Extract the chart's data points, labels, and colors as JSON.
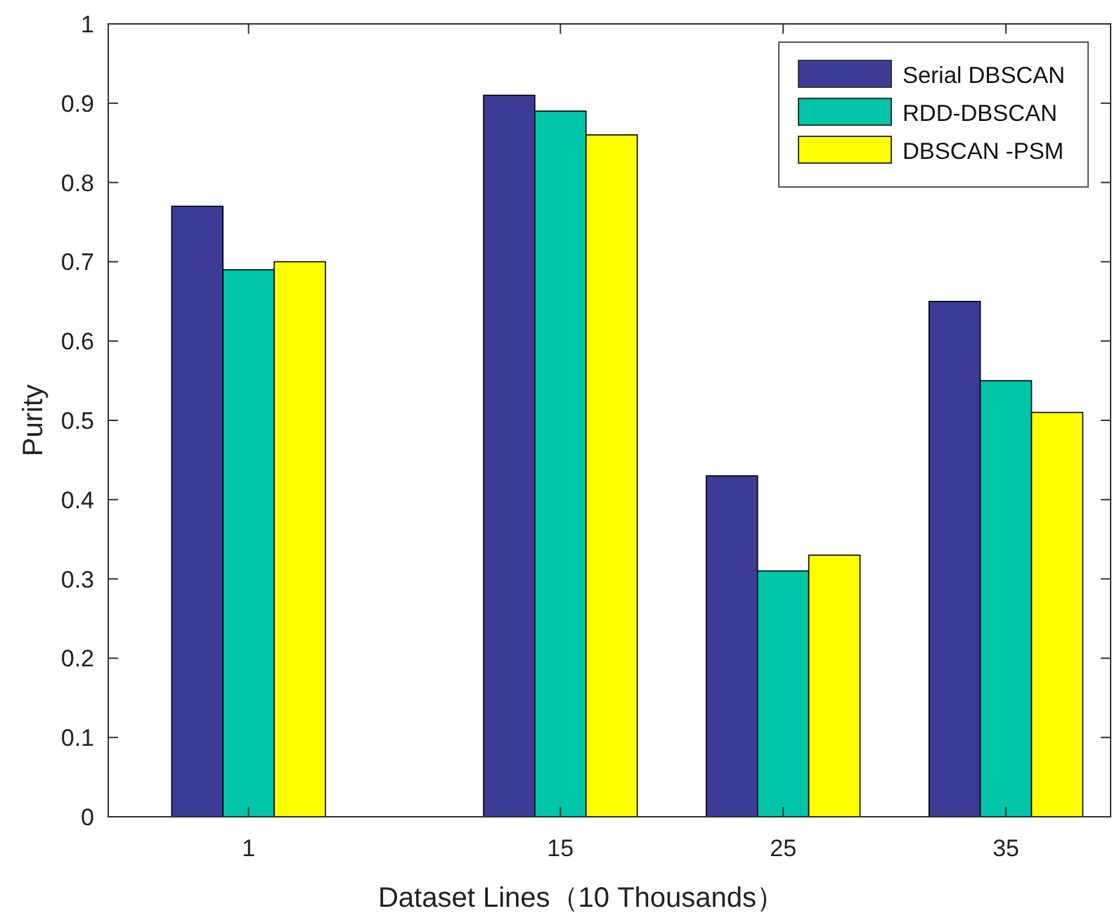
{
  "chart_data": {
    "type": "bar",
    "xlabel": "Dataset Lines（10 Thousands）",
    "ylabel": "Purity",
    "x": [
      1,
      15,
      25,
      35
    ],
    "series": [
      {
        "name": "Serial DBSCAN",
        "color": "#3c3c96",
        "values": [
          0.77,
          0.91,
          0.43,
          0.65
        ]
      },
      {
        "name": "RDD-DBSCAN",
        "color": "#00c5a8",
        "values": [
          0.69,
          0.89,
          0.31,
          0.55
        ]
      },
      {
        "name": "DBSCAN -PSM",
        "color": "#ffff00",
        "values": [
          0.7,
          0.86,
          0.33,
          0.51
        ]
      }
    ],
    "xlim": [
      -5.3,
      39.7
    ],
    "xticks": [
      1,
      15,
      25,
      35
    ],
    "ylim": [
      0,
      1
    ],
    "yticks": [
      0,
      0.1,
      0.2,
      0.3,
      0.4,
      0.5,
      0.6,
      0.7,
      0.8,
      0.9,
      1
    ],
    "grid": false,
    "legend": "top right"
  }
}
